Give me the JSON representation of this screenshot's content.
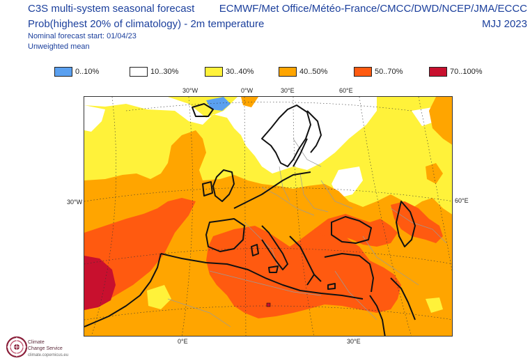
{
  "header": {
    "title": "C3S multi-system seasonal forecast",
    "subtitle": "Prob(highest 20% of climatology) - 2m temperature",
    "forecast_start": "Nominal forecast start: 01/04/23",
    "mean_type": "Unweighted mean",
    "centres": "ECMWF/Met Office/Météo-France/CMCC/DWD/NCEP/JMA/ECCC",
    "season": "MJJ 2023"
  },
  "legend": {
    "items": [
      {
        "label": "0..10%",
        "color": "#5aa0f0"
      },
      {
        "label": "10..30%",
        "color": "#ffffff"
      },
      {
        "label": "30..40%",
        "color": "#fff23a"
      },
      {
        "label": "40..50%",
        "color": "#ffa500"
      },
      {
        "label": "50..70%",
        "color": "#ff5a10"
      },
      {
        "label": "70..100%",
        "color": "#c8102e"
      }
    ]
  },
  "axes": {
    "top": [
      "30°W",
      "0°W",
      "30°E",
      "60°E"
    ],
    "left": "30°W",
    "right": "60°E",
    "bottom": [
      "0°E",
      "30°E"
    ]
  },
  "branding": {
    "name_line1": "Climate",
    "name_line2": "Change Service",
    "url": "climate.copernicus.eu"
  }
}
